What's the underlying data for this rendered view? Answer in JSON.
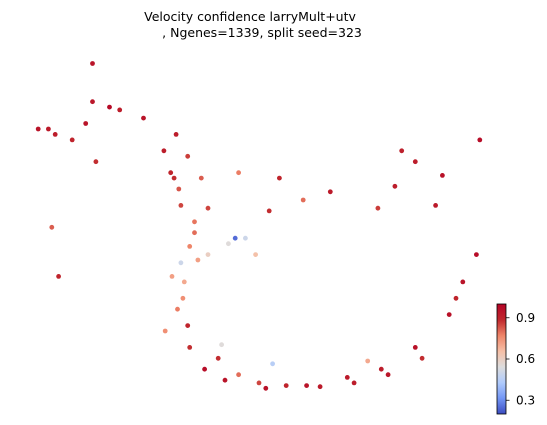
{
  "chart_data": {
    "type": "scatter",
    "title_lines": [
      "Velocity confidence larryMult+utv",
      ", Ngenes=1339, split seed=323"
    ],
    "xlabel": "",
    "ylabel": "",
    "axes_visible": false,
    "grid": false,
    "colormap": "coolwarm",
    "colormap_stops": [
      "#3b4cc0",
      "#7396f5",
      "#b0cbfc",
      "#dddddd",
      "#f6bfa6",
      "#ee8468",
      "#c0282d",
      "#b40426"
    ],
    "colorbar": {
      "range": [
        0.2,
        1.0
      ],
      "ticks": [
        0.3,
        0.6,
        0.9
      ],
      "tick_labels": [
        "0.3",
        "0.6",
        "0.9"
      ],
      "placement": "right"
    },
    "series": [
      {
        "x": [
          -2.6,
          -2.1,
          -1.8,
          -1.65,
          -1.55,
          -1.35,
          -1.3,
          -1.5,
          -1.6,
          -1.42,
          -1.78,
          -1.2,
          -0.9,
          -0.3,
          0.3,
          0.9,
          1.4,
          1.9,
          2.4,
          2.6,
          2.8,
          2.5,
          2.0,
          1.5,
          1.0,
          0.5,
          0.0,
          -0.4,
          -0.7,
          -1.7,
          -1.45,
          -1.62,
          -1.58,
          -1.35,
          -1.42,
          -1.68,
          -1.52,
          -0.1,
          0.65,
          1.6,
          2.85,
          2.3,
          -0.25,
          -1.15,
          -1.45,
          -1.0,
          0.25,
          1.35,
          1.9,
          2.2,
          1.7,
          -0.7,
          -1.25,
          -3.65,
          -3.5,
          -3.4,
          -3.15,
          -2.95,
          -2.8,
          -2.45,
          -2.85,
          -2.85,
          -3.45,
          -3.35,
          -0.95,
          -0.2,
          1.2,
          -0.85,
          -0.45,
          -0.6,
          -1.15,
          -0.75,
          -1.55
        ],
        "y": [
          2.2,
          2.0,
          1.4,
          0.9,
          0.4,
          -0.1,
          -0.6,
          -1.0,
          -1.5,
          -2.2,
          -1.9,
          -2.6,
          -2.8,
          -2.95,
          -2.9,
          -2.75,
          -2.6,
          -2.2,
          -1.6,
          -1.0,
          -0.5,
          -1.3,
          -2.4,
          -2.7,
          -2.85,
          -2.92,
          -2.9,
          -2.85,
          -2.7,
          1.0,
          1.3,
          1.7,
          0.7,
          0.1,
          -0.35,
          -0.9,
          -1.3,
          0.9,
          0.65,
          0.75,
          1.6,
          0.95,
          0.3,
          0.35,
          -1.8,
          -2.4,
          0.5,
          0.35,
          1.2,
          0.4,
          1.4,
          1.0,
          0.9,
          1.8,
          1.8,
          1.7,
          1.6,
          1.9,
          1.2,
          2.15,
          3.0,
          2.3,
          0.0,
          -0.9,
          -2.15,
          -2.5,
          -2.45,
          -0.3,
          -0.5,
          -0.2,
          -0.5,
          -0.2,
          -0.65
        ],
        "color": [
          0.98,
          0.95,
          0.92,
          0.88,
          0.85,
          0.8,
          0.72,
          0.7,
          0.78,
          0.88,
          0.75,
          0.97,
          0.95,
          0.96,
          0.95,
          0.93,
          0.92,
          0.96,
          0.96,
          0.95,
          0.97,
          0.9,
          0.88,
          0.94,
          0.92,
          0.93,
          0.9,
          0.85,
          0.8,
          0.9,
          0.86,
          0.92,
          0.83,
          0.79,
          0.77,
          0.72,
          0.75,
          0.9,
          0.93,
          0.92,
          0.97,
          0.96,
          0.88,
          0.85,
          0.9,
          0.88,
          0.8,
          0.86,
          0.92,
          0.93,
          0.91,
          0.78,
          0.82,
          0.95,
          0.93,
          0.92,
          0.9,
          0.95,
          0.88,
          0.92,
          0.95,
          0.94,
          0.82,
          0.9,
          0.55,
          0.45,
          0.7,
          0.55,
          0.65,
          0.5,
          0.6,
          0.25,
          0.5
        ]
      }
    ]
  }
}
